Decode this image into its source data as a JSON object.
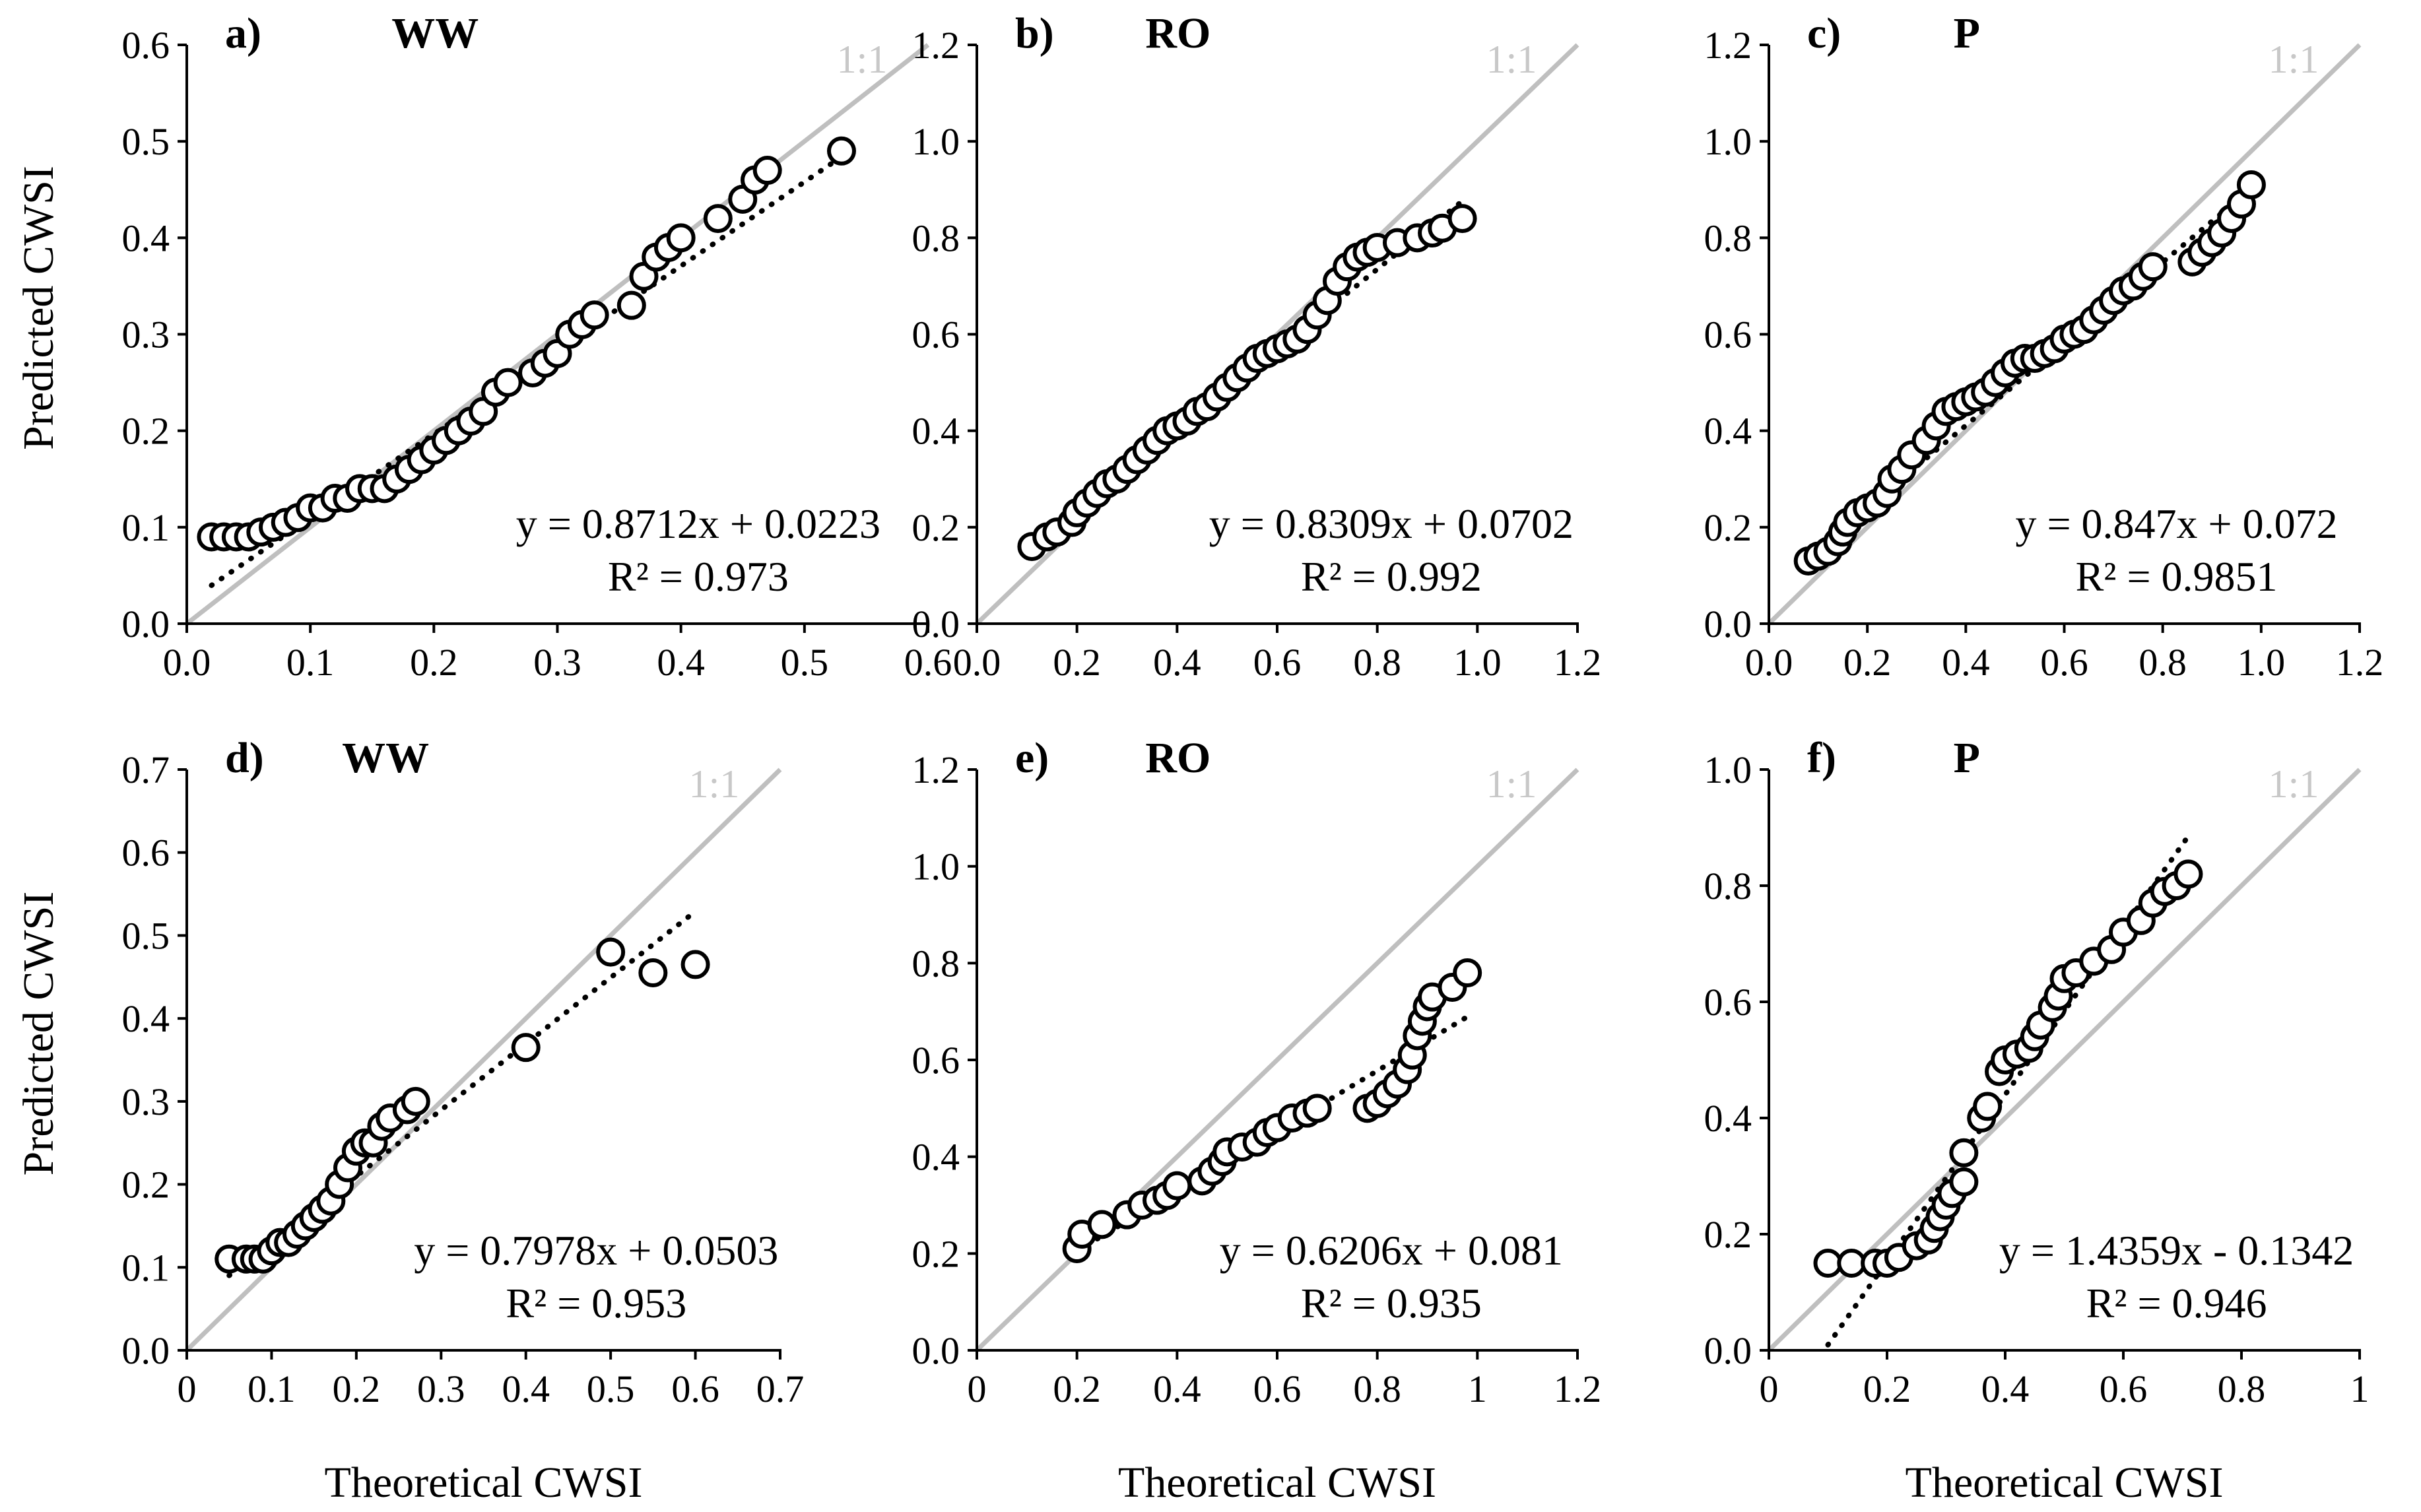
{
  "colors": {
    "identity_line": "#bfbfbf",
    "marker_edge": "#000000",
    "marker_fill": "#ffffff",
    "trendline": "#000000"
  },
  "chart_data": [
    {
      "id": "a",
      "type": "scatter",
      "panel_label": "a)",
      "title": "WW",
      "xlabel": "",
      "ylabel": "Predicted CWSI",
      "xlim": [
        0,
        0.6
      ],
      "ylim": [
        0,
        0.6
      ],
      "xticks": [
        "0.0",
        "0.1",
        "0.2",
        "0.3",
        "0.4",
        "0.5",
        "0.6"
      ],
      "yticks": [
        "0.0",
        "0.1",
        "0.2",
        "0.3",
        "0.4",
        "0.5",
        "0.6"
      ],
      "identity_label": "1:1",
      "equation": "y = 0.8712x + 0.0223",
      "r2": "R² = 0.973",
      "fit": {
        "slope": 0.8712,
        "intercept": 0.0223,
        "x_range": [
          0.02,
          0.53
        ]
      },
      "points": [
        [
          0.02,
          0.09
        ],
        [
          0.03,
          0.09
        ],
        [
          0.04,
          0.09
        ],
        [
          0.05,
          0.09
        ],
        [
          0.06,
          0.095
        ],
        [
          0.07,
          0.1
        ],
        [
          0.08,
          0.105
        ],
        [
          0.09,
          0.11
        ],
        [
          0.1,
          0.12
        ],
        [
          0.11,
          0.12
        ],
        [
          0.12,
          0.13
        ],
        [
          0.13,
          0.13
        ],
        [
          0.14,
          0.14
        ],
        [
          0.15,
          0.14
        ],
        [
          0.16,
          0.14
        ],
        [
          0.17,
          0.15
        ],
        [
          0.18,
          0.16
        ],
        [
          0.19,
          0.17
        ],
        [
          0.2,
          0.18
        ],
        [
          0.21,
          0.19
        ],
        [
          0.22,
          0.2
        ],
        [
          0.23,
          0.21
        ],
        [
          0.24,
          0.22
        ],
        [
          0.25,
          0.24
        ],
        [
          0.26,
          0.25
        ],
        [
          0.28,
          0.26
        ],
        [
          0.29,
          0.27
        ],
        [
          0.3,
          0.28
        ],
        [
          0.31,
          0.3
        ],
        [
          0.32,
          0.31
        ],
        [
          0.33,
          0.32
        ],
        [
          0.36,
          0.33
        ],
        [
          0.37,
          0.36
        ],
        [
          0.38,
          0.38
        ],
        [
          0.39,
          0.39
        ],
        [
          0.4,
          0.4
        ],
        [
          0.43,
          0.42
        ],
        [
          0.45,
          0.44
        ],
        [
          0.46,
          0.46
        ],
        [
          0.47,
          0.47
        ],
        [
          0.53,
          0.49
        ]
      ]
    },
    {
      "id": "b",
      "type": "scatter",
      "panel_label": "b)",
      "title": "RO",
      "xlabel": "",
      "ylabel": "",
      "xlim": [
        0,
        1.2
      ],
      "ylim": [
        0,
        1.2
      ],
      "xticks": [
        "0.0",
        "0.2",
        "0.4",
        "0.6",
        "0.8",
        "1.0",
        "1.2"
      ],
      "yticks": [
        "0.0",
        "0.2",
        "0.4",
        "0.6",
        "0.8",
        "1.0",
        "1.2"
      ],
      "identity_label": "1:1",
      "equation": "y = 0.8309x + 0.0702",
      "r2": "R² = 0.992",
      "fit": {
        "slope": 0.8309,
        "intercept": 0.0702,
        "x_range": [
          0.11,
          0.97
        ]
      },
      "points": [
        [
          0.11,
          0.16
        ],
        [
          0.14,
          0.18
        ],
        [
          0.16,
          0.19
        ],
        [
          0.19,
          0.21
        ],
        [
          0.2,
          0.23
        ],
        [
          0.22,
          0.25
        ],
        [
          0.24,
          0.27
        ],
        [
          0.26,
          0.29
        ],
        [
          0.28,
          0.3
        ],
        [
          0.3,
          0.32
        ],
        [
          0.32,
          0.34
        ],
        [
          0.34,
          0.36
        ],
        [
          0.36,
          0.38
        ],
        [
          0.38,
          0.4
        ],
        [
          0.4,
          0.41
        ],
        [
          0.42,
          0.42
        ],
        [
          0.44,
          0.44
        ],
        [
          0.46,
          0.45
        ],
        [
          0.48,
          0.47
        ],
        [
          0.5,
          0.49
        ],
        [
          0.52,
          0.51
        ],
        [
          0.54,
          0.53
        ],
        [
          0.56,
          0.55
        ],
        [
          0.58,
          0.56
        ],
        [
          0.6,
          0.57
        ],
        [
          0.62,
          0.58
        ],
        [
          0.64,
          0.59
        ],
        [
          0.66,
          0.61
        ],
        [
          0.68,
          0.64
        ],
        [
          0.7,
          0.67
        ],
        [
          0.72,
          0.71
        ],
        [
          0.74,
          0.74
        ],
        [
          0.76,
          0.76
        ],
        [
          0.78,
          0.77
        ],
        [
          0.8,
          0.78
        ],
        [
          0.84,
          0.79
        ],
        [
          0.88,
          0.8
        ],
        [
          0.91,
          0.81
        ],
        [
          0.93,
          0.82
        ],
        [
          0.97,
          0.84
        ]
      ]
    },
    {
      "id": "c",
      "type": "scatter",
      "panel_label": "c)",
      "title": "P",
      "xlabel": "",
      "ylabel": "",
      "xlim": [
        0,
        1.2
      ],
      "ylim": [
        0,
        1.2
      ],
      "xticks": [
        "0.0",
        "0.2",
        "0.4",
        "0.6",
        "0.8",
        "1.0",
        "1.2"
      ],
      "yticks": [
        "0.0",
        "0.2",
        "0.4",
        "0.6",
        "0.8",
        "1.0",
        "1.2"
      ],
      "identity_label": "1:1",
      "equation": "y = 0.847x + 0.072",
      "r2": "R² = 0.9851",
      "fit": {
        "slope": 0.847,
        "intercept": 0.072,
        "x_range": [
          0.08,
          0.98
        ]
      },
      "points": [
        [
          0.08,
          0.13
        ],
        [
          0.1,
          0.14
        ],
        [
          0.12,
          0.15
        ],
        [
          0.14,
          0.17
        ],
        [
          0.15,
          0.19
        ],
        [
          0.16,
          0.21
        ],
        [
          0.18,
          0.23
        ],
        [
          0.2,
          0.24
        ],
        [
          0.22,
          0.25
        ],
        [
          0.24,
          0.27
        ],
        [
          0.25,
          0.3
        ],
        [
          0.27,
          0.32
        ],
        [
          0.29,
          0.35
        ],
        [
          0.32,
          0.38
        ],
        [
          0.34,
          0.41
        ],
        [
          0.36,
          0.44
        ],
        [
          0.38,
          0.45
        ],
        [
          0.4,
          0.46
        ],
        [
          0.42,
          0.47
        ],
        [
          0.44,
          0.48
        ],
        [
          0.46,
          0.5
        ],
        [
          0.48,
          0.52
        ],
        [
          0.5,
          0.54
        ],
        [
          0.52,
          0.55
        ],
        [
          0.54,
          0.55
        ],
        [
          0.56,
          0.56
        ],
        [
          0.58,
          0.57
        ],
        [
          0.6,
          0.59
        ],
        [
          0.62,
          0.6
        ],
        [
          0.64,
          0.61
        ],
        [
          0.66,
          0.63
        ],
        [
          0.68,
          0.65
        ],
        [
          0.7,
          0.67
        ],
        [
          0.72,
          0.69
        ],
        [
          0.74,
          0.7
        ],
        [
          0.76,
          0.72
        ],
        [
          0.78,
          0.74
        ],
        [
          0.86,
          0.75
        ],
        [
          0.88,
          0.77
        ],
        [
          0.9,
          0.79
        ],
        [
          0.92,
          0.81
        ],
        [
          0.94,
          0.84
        ],
        [
          0.96,
          0.87
        ],
        [
          0.98,
          0.91
        ]
      ]
    },
    {
      "id": "d",
      "type": "scatter",
      "panel_label": "d)",
      "title": "WW",
      "xlabel": "Theoretical CWSI",
      "ylabel": "Predicted CWSI",
      "xlim": [
        0,
        0.7
      ],
      "ylim": [
        0,
        0.7
      ],
      "xticks": [
        "0",
        "0.1",
        "0.2",
        "0.3",
        "0.4",
        "0.5",
        "0.6",
        "0.7"
      ],
      "yticks": [
        "0.0",
        "0.1",
        "0.2",
        "0.3",
        "0.4",
        "0.5",
        "0.6",
        "0.7"
      ],
      "identity_label": "1:1",
      "equation": "y = 0.7978x + 0.0503",
      "r2": "R² = 0.953",
      "fit": {
        "slope": 0.7978,
        "intercept": 0.0503,
        "x_range": [
          0.05,
          0.6
        ]
      },
      "points": [
        [
          0.05,
          0.11
        ],
        [
          0.07,
          0.11
        ],
        [
          0.08,
          0.11
        ],
        [
          0.09,
          0.11
        ],
        [
          0.1,
          0.12
        ],
        [
          0.11,
          0.13
        ],
        [
          0.12,
          0.13
        ],
        [
          0.13,
          0.14
        ],
        [
          0.14,
          0.15
        ],
        [
          0.15,
          0.16
        ],
        [
          0.16,
          0.17
        ],
        [
          0.17,
          0.18
        ],
        [
          0.18,
          0.2
        ],
        [
          0.19,
          0.22
        ],
        [
          0.2,
          0.24
        ],
        [
          0.21,
          0.25
        ],
        [
          0.22,
          0.25
        ],
        [
          0.23,
          0.27
        ],
        [
          0.24,
          0.28
        ],
        [
          0.26,
          0.29
        ],
        [
          0.27,
          0.3
        ],
        [
          0.4,
          0.365
        ],
        [
          0.5,
          0.48
        ],
        [
          0.55,
          0.455
        ],
        [
          0.6,
          0.465
        ]
      ]
    },
    {
      "id": "e",
      "type": "scatter",
      "panel_label": "e)",
      "title": "RO",
      "xlabel": "Theoretical CWSI",
      "ylabel": "",
      "xlim": [
        0,
        1.2
      ],
      "ylim": [
        0,
        1.2
      ],
      "xticks": [
        "0",
        "0.2",
        "0.4",
        "0.6",
        "0.8",
        "1",
        "1.2"
      ],
      "yticks": [
        "0.0",
        "0.2",
        "0.4",
        "0.6",
        "0.8",
        "1.0",
        "1.2"
      ],
      "identity_label": "1:1",
      "equation": "y = 0.6206x + 0.081",
      "r2": "R² = 0.935",
      "fit": {
        "slope": 0.6206,
        "intercept": 0.081,
        "x_range": [
          0.2,
          0.98
        ]
      },
      "points": [
        [
          0.2,
          0.21
        ],
        [
          0.21,
          0.24
        ],
        [
          0.25,
          0.26
        ],
        [
          0.3,
          0.28
        ],
        [
          0.33,
          0.3
        ],
        [
          0.36,
          0.31
        ],
        [
          0.38,
          0.32
        ],
        [
          0.4,
          0.34
        ],
        [
          0.45,
          0.35
        ],
        [
          0.47,
          0.37
        ],
        [
          0.49,
          0.39
        ],
        [
          0.5,
          0.41
        ],
        [
          0.53,
          0.42
        ],
        [
          0.56,
          0.43
        ],
        [
          0.58,
          0.45
        ],
        [
          0.6,
          0.46
        ],
        [
          0.63,
          0.48
        ],
        [
          0.66,
          0.49
        ],
        [
          0.68,
          0.5
        ],
        [
          0.78,
          0.5
        ],
        [
          0.8,
          0.51
        ],
        [
          0.82,
          0.53
        ],
        [
          0.84,
          0.55
        ],
        [
          0.86,
          0.58
        ],
        [
          0.87,
          0.61
        ],
        [
          0.88,
          0.65
        ],
        [
          0.89,
          0.68
        ],
        [
          0.9,
          0.71
        ],
        [
          0.91,
          0.73
        ],
        [
          0.95,
          0.75
        ],
        [
          0.98,
          0.78
        ]
      ]
    },
    {
      "id": "f",
      "type": "scatter",
      "panel_label": "f)",
      "title": "P",
      "xlabel": "Theoretical CWSI",
      "ylabel": "",
      "xlim": [
        0,
        1
      ],
      "ylim": [
        0,
        1
      ],
      "xticks": [
        "0",
        "0.2",
        "0.4",
        "0.6",
        "0.8",
        "1"
      ],
      "yticks": [
        "0.0",
        "0.2",
        "0.4",
        "0.6",
        "0.8",
        "1.0"
      ],
      "identity_label": "1:1",
      "equation": "y = 1.4359x - 0.1342",
      "r2": "R² = 0.946",
      "fit": {
        "slope": 1.4359,
        "intercept": -0.1342,
        "x_range": [
          0.1,
          0.71
        ]
      },
      "points": [
        [
          0.1,
          0.15
        ],
        [
          0.14,
          0.15
        ],
        [
          0.18,
          0.15
        ],
        [
          0.2,
          0.15
        ],
        [
          0.22,
          0.16
        ],
        [
          0.25,
          0.18
        ],
        [
          0.27,
          0.19
        ],
        [
          0.28,
          0.21
        ],
        [
          0.29,
          0.23
        ],
        [
          0.3,
          0.25
        ],
        [
          0.31,
          0.27
        ],
        [
          0.33,
          0.29
        ],
        [
          0.33,
          0.34
        ],
        [
          0.36,
          0.4
        ],
        [
          0.37,
          0.42
        ],
        [
          0.39,
          0.48
        ],
        [
          0.4,
          0.5
        ],
        [
          0.42,
          0.51
        ],
        [
          0.44,
          0.52
        ],
        [
          0.45,
          0.54
        ],
        [
          0.46,
          0.56
        ],
        [
          0.48,
          0.59
        ],
        [
          0.49,
          0.61
        ],
        [
          0.5,
          0.64
        ],
        [
          0.52,
          0.65
        ],
        [
          0.55,
          0.67
        ],
        [
          0.58,
          0.69
        ],
        [
          0.6,
          0.72
        ],
        [
          0.63,
          0.74
        ],
        [
          0.65,
          0.77
        ],
        [
          0.67,
          0.79
        ],
        [
          0.69,
          0.8
        ],
        [
          0.71,
          0.82
        ]
      ]
    }
  ]
}
